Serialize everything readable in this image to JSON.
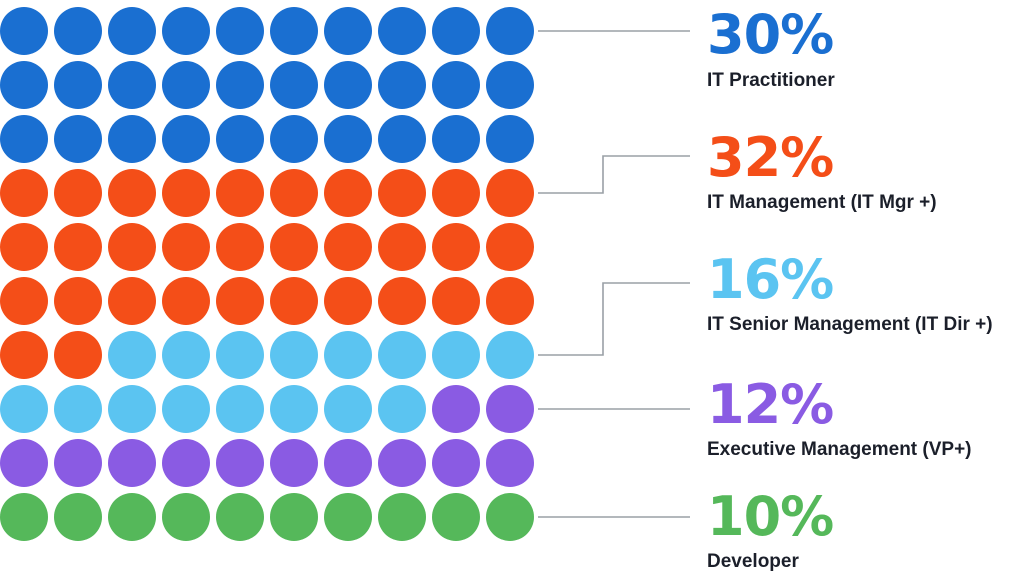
{
  "chart_data": {
    "type": "waffle",
    "grid": {
      "rows": 10,
      "cols": 10
    },
    "series": [
      {
        "name": "IT Practitioner",
        "value_label": "30%",
        "value": 30,
        "color": "#1a6fd1"
      },
      {
        "name": "IT Management (IT Mgr +)",
        "value_label": "32%",
        "value": 32,
        "color": "#f44e18"
      },
      {
        "name": "IT Senior Management (IT Dir +)",
        "value_label": "16%",
        "value": 16,
        "color": "#5bc4f1"
      },
      {
        "name": "Executive Management (VP+)",
        "value_label": "12%",
        "value": 12,
        "color": "#8a5be3"
      },
      {
        "name": "Developer",
        "value_label": "10%",
        "value": 10,
        "color": "#55b85a"
      }
    ],
    "connector_color": "#9aa0a6"
  }
}
